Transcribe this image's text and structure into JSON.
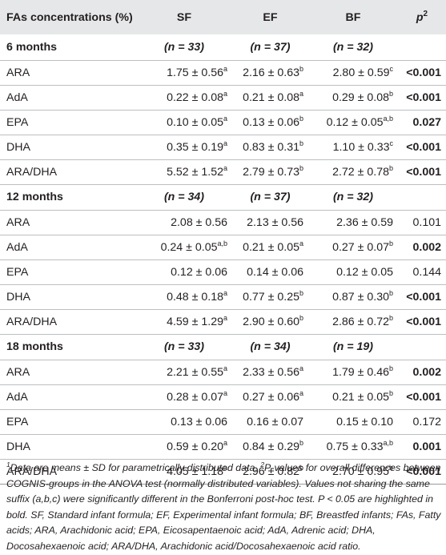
{
  "header": {
    "label": "FAs concentrations (%)",
    "groups": [
      "SF",
      "EF",
      "BF"
    ],
    "p": "p",
    "p_sup": "2"
  },
  "sections": [
    {
      "title": "6 months",
      "n": [
        "(n = 33)",
        "(n = 37)",
        "(n = 32)"
      ],
      "rows": [
        {
          "label": "ARA",
          "vals": [
            {
              "v": "1.75 ± 0.56",
              "s": "a"
            },
            {
              "v": "2.16 ± 0.63",
              "s": "b"
            },
            {
              "v": "2.80 ± 0.59",
              "s": "c"
            }
          ],
          "p": "<0.001",
          "pbold": true
        },
        {
          "label": "AdA",
          "vals": [
            {
              "v": "0.22 ± 0.08",
              "s": "a"
            },
            {
              "v": "0.21 ± 0.08",
              "s": "a"
            },
            {
              "v": "0.29 ± 0.08",
              "s": "b"
            }
          ],
          "p": "<0.001",
          "pbold": true
        },
        {
          "label": "EPA",
          "vals": [
            {
              "v": "0.10 ± 0.05",
              "s": "a"
            },
            {
              "v": "0.13 ± 0.06",
              "s": "b"
            },
            {
              "v": "0.12 ± 0.05",
              "s": "a,b"
            }
          ],
          "p": "0.027",
          "pbold": true
        },
        {
          "label": "DHA",
          "vals": [
            {
              "v": "0.35 ± 0.19",
              "s": "a"
            },
            {
              "v": "0.83 ± 0.31",
              "s": "b"
            },
            {
              "v": "1.10 ± 0.33",
              "s": "c"
            }
          ],
          "p": "<0.001",
          "pbold": true
        },
        {
          "label": "ARA/DHA",
          "vals": [
            {
              "v": "5.52 ± 1.52",
              "s": "a"
            },
            {
              "v": "2.79 ± 0.73",
              "s": "b"
            },
            {
              "v": "2.72 ± 0.78",
              "s": "b"
            }
          ],
          "p": "<0.001",
          "pbold": true
        }
      ]
    },
    {
      "title": "12 months",
      "n": [
        "(n = 34)",
        "(n = 37)",
        "(n = 32)"
      ],
      "rows": [
        {
          "label": "ARA",
          "vals": [
            {
              "v": "2.08 ± 0.56",
              "s": ""
            },
            {
              "v": "2.13 ± 0.56",
              "s": ""
            },
            {
              "v": "2.36 ± 0.59",
              "s": ""
            }
          ],
          "p": "0.101",
          "pbold": false
        },
        {
          "label": "AdA",
          "vals": [
            {
              "v": "0.24 ± 0.05",
              "s": "a,b"
            },
            {
              "v": "0.21 ± 0.05",
              "s": "a"
            },
            {
              "v": "0.27 ± 0.07",
              "s": "b"
            }
          ],
          "p": "0.002",
          "pbold": true
        },
        {
          "label": "EPA",
          "vals": [
            {
              "v": "0.12 ± 0.06",
              "s": ""
            },
            {
              "v": "0.14 ± 0.06",
              "s": ""
            },
            {
              "v": "0.12 ± 0.05",
              "s": ""
            }
          ],
          "p": "0.144",
          "pbold": false
        },
        {
          "label": "DHA",
          "vals": [
            {
              "v": "0.48 ± 0.18",
              "s": "a"
            },
            {
              "v": "0.77 ± 0.25",
              "s": "b"
            },
            {
              "v": "0.87 ± 0.30",
              "s": "b"
            }
          ],
          "p": "<0.001",
          "pbold": true
        },
        {
          "label": "ARA/DHA",
          "vals": [
            {
              "v": "4.59 ± 1.29",
              "s": "a"
            },
            {
              "v": "2.90 ± 0.60",
              "s": "b"
            },
            {
              "v": "2.86 ± 0.72",
              "s": "b"
            }
          ],
          "p": "<0.001",
          "pbold": true
        }
      ]
    },
    {
      "title": "18 months",
      "n": [
        "(n = 33)",
        "(n = 34)",
        "(n = 19)"
      ],
      "rows": [
        {
          "label": "ARA",
          "vals": [
            {
              "v": "2.21 ± 0.55",
              "s": "a"
            },
            {
              "v": "2.33 ± 0.56",
              "s": "a"
            },
            {
              "v": "1.79 ± 0.46",
              "s": "b"
            }
          ],
          "p": "0.002",
          "pbold": true
        },
        {
          "label": "AdA",
          "vals": [
            {
              "v": "0.28 ± 0.07",
              "s": "a"
            },
            {
              "v": "0.27 ± 0.06",
              "s": "a"
            },
            {
              "v": "0.21 ± 0.05",
              "s": "b"
            }
          ],
          "p": "<0.001",
          "pbold": true
        },
        {
          "label": "EPA",
          "vals": [
            {
              "v": "0.13 ± 0.06",
              "s": ""
            },
            {
              "v": "0.16 ± 0.07",
              "s": ""
            },
            {
              "v": "0.15 ± 0.10",
              "s": ""
            }
          ],
          "p": "0.172",
          "pbold": false
        },
        {
          "label": "DHA",
          "vals": [
            {
              "v": "0.59 ± 0.20",
              "s": "a"
            },
            {
              "v": "0.84 ± 0.29",
              "s": "b"
            },
            {
              "v": "0.75 ± 0.33",
              "s": "a,b"
            }
          ],
          "p": "0.001",
          "pbold": true
        },
        {
          "label": "ARA/DHA",
          "vals": [
            {
              "v": "4.05 ± 1.18",
              "s": "a"
            },
            {
              "v": "2.96 ± 0.82",
              "s": "b"
            },
            {
              "v": "2.70 ± 0.95",
              "s": "b"
            }
          ],
          "p": "<0.001",
          "pbold": true
        }
      ]
    }
  ],
  "footnote": {
    "sup1": "1",
    "text1": "Data are means ± SD for parametrically distributed data. ",
    "sup2": "2",
    "text2": "P-values for overall differences between COGNIS-groups in the ANOVA test (normally distributed variables). Values not sharing the same suffix (a,b,c) were significantly different in the Bonferroni post-hoc test. P < 0.05 are highlighted in bold. SF, Standard infant formula; EF, Experimental infant formula; BF, Breastfed infants; FAs, Fatty acids; ARA, Arachidonic acid; EPA, Eicosapentaenoic acid; AdA, Adrenic acid; DHA, Docosahexaenoic acid; ARA/DHA, Arachidonic acid/Docosahexaenoic acid ratio."
  },
  "colors": {
    "header_bg": "#e6e7e8",
    "text": "#231f20",
    "rule": "#bcbec0"
  }
}
